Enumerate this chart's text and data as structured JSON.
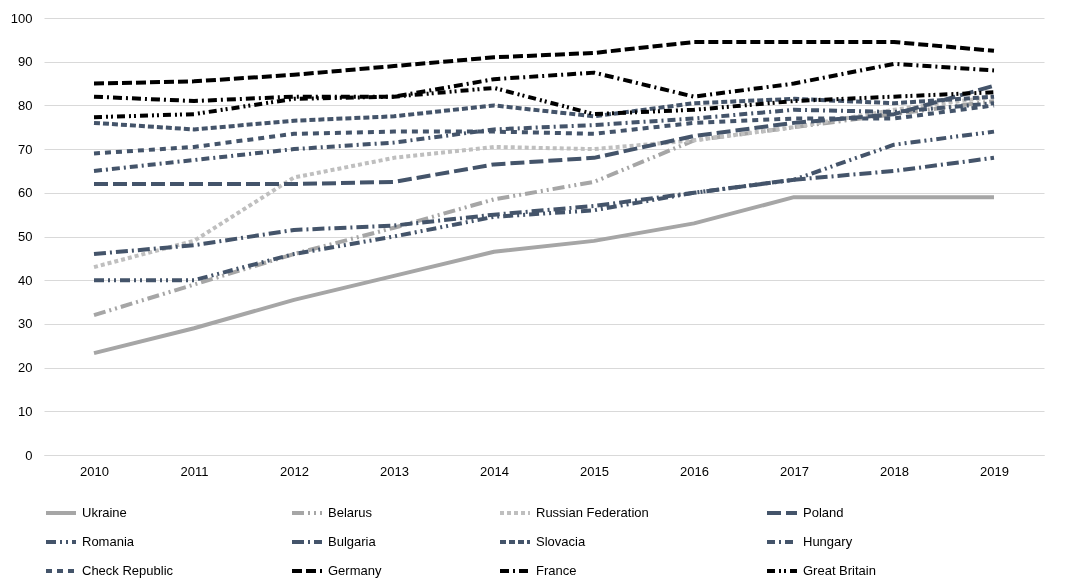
{
  "chart_data": {
    "type": "line",
    "categories": [
      "2010",
      "2011",
      "2012",
      "2013",
      "2014",
      "2015",
      "2016",
      "2017",
      "2018",
      "2019"
    ],
    "ylim": [
      0,
      100
    ],
    "yticks": [
      0,
      10,
      20,
      30,
      40,
      50,
      60,
      70,
      80,
      90,
      100
    ],
    "grid": "y",
    "legend": "bottom",
    "marker": "none",
    "series": [
      {
        "name": "Ukraine",
        "color": "#a6a6a6",
        "line_style": "solid",
        "values": [
          23.3,
          29,
          35.5,
          41,
          46.5,
          49,
          53,
          59,
          59,
          59
        ]
      },
      {
        "name": "Belarus",
        "color": "#a6a6a6",
        "line_style": "dashed",
        "values": [
          32,
          39,
          46,
          52,
          58.5,
          62.5,
          72,
          75,
          78,
          81
        ]
      },
      {
        "name": "Russian Federation",
        "color": "#bfbfbf",
        "line_style": "dashed",
        "values": [
          43,
          49,
          63.5,
          68,
          70.5,
          70,
          72,
          75,
          79,
          82
        ]
      },
      {
        "name": "Poland",
        "color": "#44546a",
        "line_style": "dashed",
        "values": [
          62,
          62,
          62,
          62.5,
          66.5,
          68,
          73,
          76,
          78,
          84.5
        ]
      },
      {
        "name": "Romania",
        "color": "#44546a",
        "line_style": "dashed",
        "values": [
          40,
          40,
          46,
          50,
          54.5,
          56,
          60,
          63,
          71,
          74
        ]
      },
      {
        "name": "Bulgaria",
        "color": "#44546a",
        "line_style": "dashed",
        "values": [
          46,
          48,
          51.5,
          52.5,
          55,
          57,
          60,
          63,
          65,
          68
        ]
      },
      {
        "name": "Slovacia",
        "color": "#44546a",
        "line_style": "dashed",
        "values": [
          76,
          74.5,
          76.5,
          77.5,
          80,
          77.5,
          80.5,
          81.5,
          80.5,
          82
        ]
      },
      {
        "name": "Hungary",
        "color": "#44546a",
        "line_style": "dashed",
        "values": [
          65,
          67.5,
          70,
          71.5,
          74.5,
          75.5,
          77,
          79,
          78.5,
          80.5
        ]
      },
      {
        "name": "Check Republic",
        "color": "#44546a",
        "line_style": "dashed",
        "values": [
          69,
          70.5,
          73.5,
          74,
          74,
          73.5,
          76,
          77,
          77,
          80
        ]
      },
      {
        "name": "Germany",
        "color": "#000000",
        "line_style": "dashed",
        "values": [
          85,
          85.5,
          87,
          89,
          91,
          92,
          94.5,
          94.5,
          94.5,
          92.5
        ]
      },
      {
        "name": "France",
        "color": "#000000",
        "line_style": "dashed",
        "values": [
          82,
          81,
          82,
          82,
          86,
          87.5,
          82,
          85,
          89.5,
          88
        ]
      },
      {
        "name": "Great Britain",
        "color": "#000000",
        "line_style": "dashed",
        "values": [
          77.3,
          78,
          81.5,
          82,
          84,
          78,
          79,
          81,
          82,
          83
        ]
      }
    ]
  }
}
